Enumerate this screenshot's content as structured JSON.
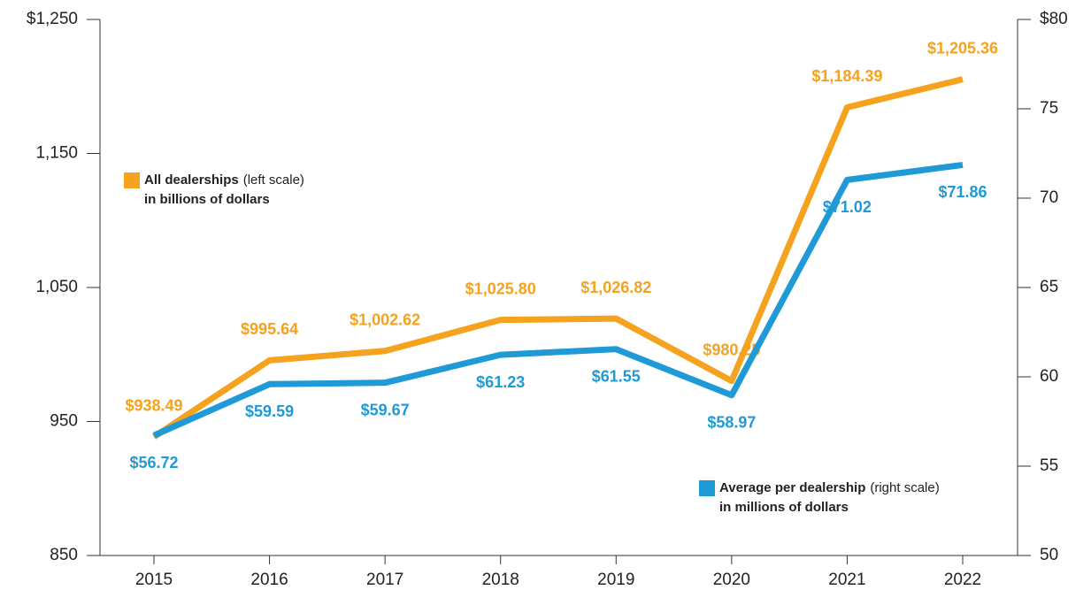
{
  "chart_data": {
    "type": "line",
    "categories": [
      "2015",
      "2016",
      "2017",
      "2018",
      "2019",
      "2020",
      "2021",
      "2022"
    ],
    "ylim": [
      850,
      1250
    ],
    "yticks": [
      850,
      950,
      {
        "value": 1050,
        "label": "1,050"
      },
      {
        "value": 1150,
        "label": "1,150"
      },
      {
        "value": 1250,
        "label": "$1,250"
      }
    ],
    "y2lim": [
      50,
      80
    ],
    "y2ticks": [
      50,
      55,
      60,
      65,
      70,
      75,
      {
        "value": 80,
        "label": "$80"
      }
    ],
    "series": [
      {
        "name": "All dealerships",
        "legend_note": "(left scale)",
        "legend_unit": "in billions of dollars",
        "color": "#f5a21e",
        "axis": "y",
        "values": [
          938.49,
          995.64,
          1002.62,
          1025.8,
          1026.82,
          980.25,
          1184.39,
          1205.36
        ],
        "value_labels": [
          "$938.49",
          "$995.64",
          "$1,002.62",
          "$1,025.80",
          "$1,026.82",
          "$980.25",
          "$1,184.39",
          "$1,205.36"
        ]
      },
      {
        "name": "Average per dealership",
        "legend_note": "(right scale)",
        "legend_unit": "in millions of dollars",
        "color": "#1f9ad6",
        "axis": "y2",
        "values": [
          56.72,
          59.59,
          59.67,
          61.23,
          61.55,
          58.97,
          71.02,
          71.86
        ],
        "value_labels": [
          "$56.72",
          "$59.59",
          "$59.67",
          "$61.23",
          "$61.55",
          "$58.97",
          "$71.02",
          "$71.86"
        ]
      }
    ]
  }
}
